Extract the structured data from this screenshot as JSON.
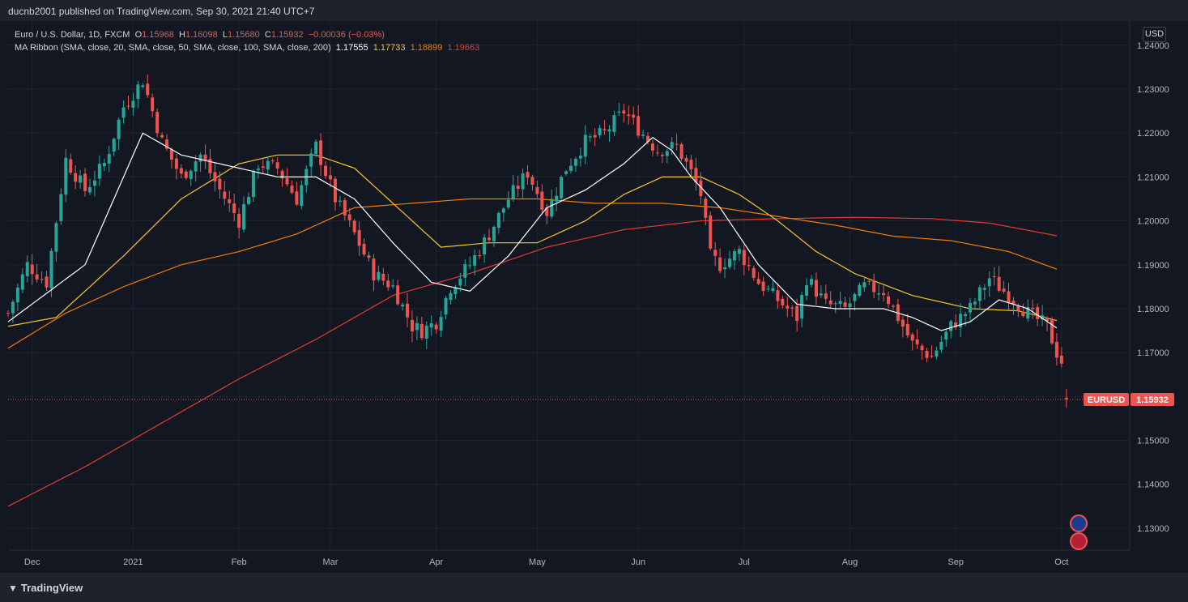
{
  "header": {
    "published": "ducnb2001 published on TradingView.com, Sep 30, 2021 21:40 UTC+7"
  },
  "legend": {
    "symbol": "Euro / U.S. Dollar, 1D, FXCM",
    "open_k": "O",
    "open": "1.15968",
    "high_k": "H",
    "high": "1.16098",
    "low_k": "L",
    "low": "1.15680",
    "close_k": "C",
    "close": "1.15932",
    "change": "−0.00036 (−0.03%)",
    "ma_label": "MA Ribbon (SMA, close, 20, SMA, close, 50, SMA, close, 100, SMA, close, 200)",
    "ma_values": [
      "1.17555",
      "1.17733",
      "1.18899",
      "1.19663"
    ]
  },
  "currency_button": "USD",
  "price_tag": {
    "symbol": "EURUSD",
    "value": "1.15932"
  },
  "footer": {
    "brand": "TradingView"
  },
  "colors": {
    "background": "#131722",
    "up": "#26a69a",
    "down": "#ef5350",
    "ma20": "#ffffff",
    "ma50": "#f7c530",
    "ma100": "#f57c00",
    "ma200": "#e53935"
  },
  "icons": [
    "eu-flag-icon",
    "us-flag-icon",
    "tradingview-logo-icon"
  ],
  "chart_data": {
    "type": "candlestick",
    "ylim": [
      1.125,
      1.2455
    ],
    "yticks": [
      "1.24000",
      "1.23000",
      "1.22000",
      "1.21000",
      "1.20000",
      "1.19000",
      "1.18000",
      "1.17000",
      "1.16000",
      "1.15000",
      "1.14000",
      "1.13000"
    ],
    "xticks": [
      {
        "label": "Dec",
        "day": 5
      },
      {
        "label": "2021",
        "day": 26
      },
      {
        "label": "Feb",
        "day": 48
      },
      {
        "label": "Mar",
        "day": 67
      },
      {
        "label": "Apr",
        "day": 89
      },
      {
        "label": "May",
        "day": 110
      },
      {
        "label": "Jun",
        "day": 131
      },
      {
        "label": "Jul",
        "day": 153
      },
      {
        "label": "Aug",
        "day": 175
      },
      {
        "label": "Sep",
        "day": 197
      },
      {
        "label": "Oct",
        "day": 219
      }
    ],
    "last_price": 1.15932,
    "close_anchors": [
      [
        0,
        1.179
      ],
      [
        4,
        1.19
      ],
      [
        8,
        1.186
      ],
      [
        12,
        1.214
      ],
      [
        16,
        1.207
      ],
      [
        20,
        1.213
      ],
      [
        24,
        1.226
      ],
      [
        28,
        1.232
      ],
      [
        32,
        1.218
      ],
      [
        36,
        1.21
      ],
      [
        40,
        1.215
      ],
      [
        44,
        1.207
      ],
      [
        48,
        1.2
      ],
      [
        52,
        1.213
      ],
      [
        56,
        1.212
      ],
      [
        60,
        1.205
      ],
      [
        64,
        1.217
      ],
      [
        68,
        1.205
      ],
      [
        72,
        1.197
      ],
      [
        76,
        1.188
      ],
      [
        80,
        1.185
      ],
      [
        84,
        1.176
      ],
      [
        86,
        1.175
      ],
      [
        89,
        1.177
      ],
      [
        92,
        1.185
      ],
      [
        96,
        1.19
      ],
      [
        100,
        1.197
      ],
      [
        104,
        1.205
      ],
      [
        108,
        1.211
      ],
      [
        112,
        1.202
      ],
      [
        116,
        1.212
      ],
      [
        120,
        1.218
      ],
      [
        124,
        1.22
      ],
      [
        128,
        1.225
      ],
      [
        131,
        1.221
      ],
      [
        135,
        1.216
      ],
      [
        139,
        1.217
      ],
      [
        142,
        1.211
      ],
      [
        144,
        1.206
      ],
      [
        146,
        1.192
      ],
      [
        148,
        1.19
      ],
      [
        152,
        1.193
      ],
      [
        156,
        1.186
      ],
      [
        160,
        1.182
      ],
      [
        164,
        1.178
      ],
      [
        166,
        1.187
      ],
      [
        170,
        1.181
      ],
      [
        174,
        1.18
      ],
      [
        178,
        1.185
      ],
      [
        182,
        1.184
      ],
      [
        185,
        1.178
      ],
      [
        188,
        1.172
      ],
      [
        192,
        1.169
      ],
      [
        196,
        1.176
      ],
      [
        200,
        1.18
      ],
      [
        204,
        1.187
      ],
      [
        208,
        1.183
      ],
      [
        212,
        1.179
      ],
      [
        216,
        1.176
      ],
      [
        218,
        1.17
      ],
      [
        219,
        1.168
      ],
      [
        220,
        1.159
      ]
    ],
    "ma_series": [
      {
        "name": "SMA 20",
        "period": 20,
        "points": [
          [
            0,
            1.177
          ],
          [
            16,
            1.19
          ],
          [
            28,
            1.22
          ],
          [
            36,
            1.215
          ],
          [
            44,
            1.213
          ],
          [
            48,
            1.212
          ],
          [
            56,
            1.21
          ],
          [
            64,
            1.21
          ],
          [
            72,
            1.205
          ],
          [
            80,
            1.195
          ],
          [
            88,
            1.186
          ],
          [
            96,
            1.184
          ],
          [
            104,
            1.192
          ],
          [
            112,
            1.203
          ],
          [
            120,
            1.207
          ],
          [
            128,
            1.213
          ],
          [
            134,
            1.219
          ],
          [
            138,
            1.216
          ],
          [
            142,
            1.21
          ],
          [
            148,
            1.203
          ],
          [
            156,
            1.19
          ],
          [
            164,
            1.181
          ],
          [
            172,
            1.18
          ],
          [
            176,
            1.18
          ],
          [
            182,
            1.18
          ],
          [
            188,
            1.178
          ],
          [
            194,
            1.175
          ],
          [
            200,
            1.177
          ],
          [
            206,
            1.182
          ],
          [
            212,
            1.18
          ],
          [
            218,
            1.1756
          ]
        ]
      },
      {
        "name": "SMA 50",
        "period": 50,
        "points": [
          [
            0,
            1.176
          ],
          [
            10,
            1.178
          ],
          [
            24,
            1.192
          ],
          [
            36,
            1.205
          ],
          [
            48,
            1.213
          ],
          [
            56,
            1.215
          ],
          [
            64,
            1.215
          ],
          [
            72,
            1.212
          ],
          [
            80,
            1.204
          ],
          [
            90,
            1.194
          ],
          [
            100,
            1.195
          ],
          [
            110,
            1.195
          ],
          [
            120,
            1.2
          ],
          [
            128,
            1.206
          ],
          [
            136,
            1.21
          ],
          [
            144,
            1.21
          ],
          [
            152,
            1.206
          ],
          [
            160,
            1.2
          ],
          [
            168,
            1.193
          ],
          [
            176,
            1.188
          ],
          [
            188,
            1.183
          ],
          [
            200,
            1.18
          ],
          [
            210,
            1.1795
          ],
          [
            218,
            1.1773
          ]
        ]
      },
      {
        "name": "SMA 100",
        "period": 100,
        "points": [
          [
            0,
            1.171
          ],
          [
            12,
            1.179
          ],
          [
            24,
            1.185
          ],
          [
            36,
            1.19
          ],
          [
            48,
            1.193
          ],
          [
            60,
            1.197
          ],
          [
            72,
            1.203
          ],
          [
            84,
            1.204
          ],
          [
            96,
            1.205
          ],
          [
            110,
            1.205
          ],
          [
            122,
            1.204
          ],
          [
            136,
            1.204
          ],
          [
            148,
            1.203
          ],
          [
            160,
            1.201
          ],
          [
            172,
            1.199
          ],
          [
            184,
            1.1965
          ],
          [
            196,
            1.1955
          ],
          [
            208,
            1.193
          ],
          [
            218,
            1.189
          ]
        ]
      },
      {
        "name": "SMA 200",
        "period": 200,
        "points": [
          [
            0,
            1.135
          ],
          [
            16,
            1.144
          ],
          [
            32,
            1.154
          ],
          [
            48,
            1.164
          ],
          [
            64,
            1.173
          ],
          [
            80,
            1.183
          ],
          [
            96,
            1.188
          ],
          [
            112,
            1.194
          ],
          [
            128,
            1.198
          ],
          [
            144,
            1.2
          ],
          [
            160,
            1.2005
          ],
          [
            176,
            1.2008
          ],
          [
            192,
            1.2005
          ],
          [
            204,
            1.1995
          ],
          [
            218,
            1.1966
          ]
        ]
      }
    ]
  }
}
